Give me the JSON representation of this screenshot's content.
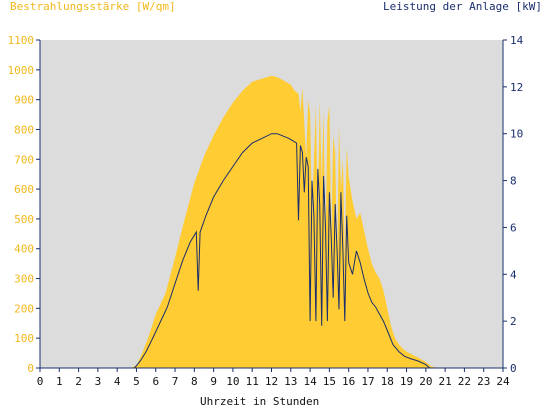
{
  "colors": {
    "irradiance": "#ffcc33",
    "power": "#1a2e6e",
    "plot_bg": "#dcdcdc",
    "axis": "#1a2e6e",
    "left_label": "#f2b81b"
  },
  "chart_data": {
    "type": "area",
    "title": "",
    "xlabel": "Uhrzeit in Stunden",
    "xlim": [
      0,
      24
    ],
    "x_ticks": [
      "0",
      "1",
      "2",
      "3",
      "4",
      "5",
      "6",
      "7",
      "8",
      "9",
      "10",
      "11",
      "12",
      "13",
      "14",
      "15",
      "16",
      "17",
      "18",
      "19",
      "20",
      "21",
      "22",
      "23",
      "24"
    ],
    "y_left": {
      "label": "Bestrahlungsstärke [W/qm]",
      "lim": [
        0,
        1100
      ],
      "ticks": [
        "0",
        "100",
        "200",
        "300",
        "400",
        "500",
        "600",
        "700",
        "800",
        "900",
        "1000",
        "1100"
      ]
    },
    "y_right": {
      "label": "Leistung der Anlage [kW]",
      "lim": [
        0,
        14
      ],
      "ticks": [
        "0",
        "2",
        "4",
        "6",
        "8",
        "10",
        "12",
        "14"
      ]
    },
    "grid": false,
    "series": [
      {
        "name": "Bestrahlungsstärke [W/qm]",
        "axis": "left",
        "kind": "area",
        "x": [
          0,
          4.7,
          5.0,
          5.3,
          5.6,
          6.0,
          6.5,
          7.0,
          7.5,
          8.0,
          8.5,
          9.0,
          9.5,
          10.0,
          10.5,
          11.0,
          11.5,
          12.0,
          12.3,
          12.6,
          13.0,
          13.2,
          13.4,
          13.5,
          13.6,
          13.8,
          13.9,
          14.0,
          14.1,
          14.2,
          14.3,
          14.4,
          14.5,
          14.6,
          14.7,
          14.8,
          14.9,
          15.0,
          15.1,
          15.2,
          15.3,
          15.4,
          15.5,
          15.6,
          15.7,
          15.8,
          15.9,
          16.0,
          16.2,
          16.4,
          16.6,
          16.8,
          17.0,
          17.2,
          17.4,
          17.6,
          17.8,
          18.0,
          18.2,
          18.4,
          18.6,
          18.8,
          19.0,
          19.3,
          19.6,
          20.0,
          20.3,
          20.6,
          24
        ],
        "values": [
          0,
          0,
          10,
          50,
          100,
          180,
          250,
          370,
          500,
          620,
          710,
          780,
          840,
          890,
          930,
          960,
          970,
          980,
          975,
          965,
          950,
          930,
          920,
          860,
          940,
          700,
          900,
          850,
          500,
          700,
          880,
          480,
          900,
          620,
          860,
          400,
          830,
          880,
          420,
          780,
          720,
          340,
          820,
          600,
          700,
          360,
          740,
          640,
          560,
          500,
          520,
          460,
          400,
          350,
          320,
          300,
          260,
          200,
          140,
          100,
          80,
          65,
          55,
          45,
          35,
          20,
          5,
          0,
          0
        ]
      },
      {
        "name": "Leistung der Anlage [kW]",
        "axis": "right",
        "kind": "line",
        "x": [
          0,
          4.9,
          5.2,
          5.5,
          5.8,
          6.2,
          6.6,
          7.0,
          7.4,
          7.8,
          8.1,
          8.2,
          8.3,
          8.6,
          9.0,
          9.5,
          10.0,
          10.5,
          11.0,
          11.5,
          12.0,
          12.3,
          12.6,
          12.9,
          13.1,
          13.3,
          13.4,
          13.5,
          13.6,
          13.7,
          13.8,
          13.9,
          14.0,
          14.1,
          14.2,
          14.3,
          14.4,
          14.5,
          14.6,
          14.7,
          14.8,
          14.9,
          15.0,
          15.1,
          15.2,
          15.3,
          15.4,
          15.5,
          15.6,
          15.7,
          15.8,
          15.9,
          16.0,
          16.2,
          16.4,
          16.6,
          16.8,
          17.0,
          17.2,
          17.4,
          17.6,
          17.8,
          18.0,
          18.3,
          18.6,
          18.9,
          19.2,
          19.6,
          20.0,
          20.2,
          24
        ],
        "values": [
          0,
          0,
          0.3,
          0.7,
          1.2,
          1.9,
          2.6,
          3.6,
          4.6,
          5.4,
          5.8,
          3.3,
          5.8,
          6.5,
          7.3,
          8.0,
          8.6,
          9.2,
          9.6,
          9.8,
          10.0,
          10.0,
          9.9,
          9.8,
          9.7,
          9.6,
          6.3,
          9.5,
          9.2,
          7.5,
          9.0,
          8.6,
          2.0,
          8.0,
          6.5,
          2.0,
          8.5,
          7.0,
          1.8,
          8.2,
          6.0,
          2.0,
          7.5,
          5.5,
          3.0,
          7.0,
          5.0,
          2.5,
          7.5,
          5.0,
          2.0,
          6.5,
          4.5,
          4.0,
          5.0,
          4.5,
          3.8,
          3.2,
          2.8,
          2.6,
          2.3,
          2.0,
          1.6,
          1.0,
          0.7,
          0.5,
          0.4,
          0.3,
          0.15,
          0,
          0
        ]
      }
    ]
  }
}
